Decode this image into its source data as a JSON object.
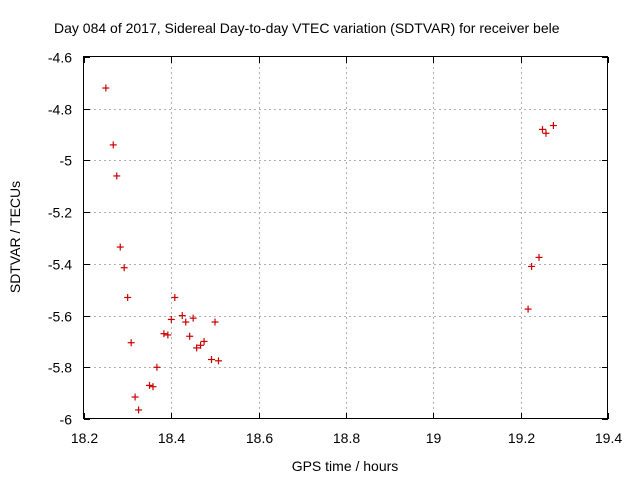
{
  "chart_data": {
    "type": "scatter",
    "title": "Day 084 of 2017, Sidereal Day-to-day VTEC variation (SDTVAR) for receiver bele",
    "xlabel": "GPS time / hours",
    "ylabel": "SDTVAR / TECUs",
    "xlim": [
      18.2,
      19.4
    ],
    "ylim": [
      -6.0,
      -4.6
    ],
    "grid": true,
    "x_ticks": [
      "18.2",
      "18.4",
      "18.6",
      "18.8",
      "19",
      "19.2",
      "19.4"
    ],
    "y_ticks": [
      "-6",
      "-5.8",
      "-5.6",
      "-5.4",
      "-5.2",
      "-5",
      "-4.8",
      "-4.6"
    ],
    "series": [
      {
        "name": "SDTVAR",
        "color": "#cc0000",
        "marker": "plus",
        "points": [
          [
            18.25,
            -4.72
          ],
          [
            18.267,
            -4.94
          ],
          [
            18.275,
            -5.06
          ],
          [
            18.283,
            -5.335
          ],
          [
            18.292,
            -5.415
          ],
          [
            18.3,
            -5.53
          ],
          [
            18.308,
            -5.705
          ],
          [
            18.317,
            -5.915
          ],
          [
            18.325,
            -5.965
          ],
          [
            18.35,
            -5.87
          ],
          [
            18.358,
            -5.875
          ],
          [
            18.367,
            -5.8
          ],
          [
            18.383,
            -5.67
          ],
          [
            18.392,
            -5.675
          ],
          [
            18.4,
            -5.615
          ],
          [
            18.408,
            -5.53
          ],
          [
            18.425,
            -5.6
          ],
          [
            18.433,
            -5.625
          ],
          [
            18.442,
            -5.68
          ],
          [
            18.45,
            -5.61
          ],
          [
            18.458,
            -5.725
          ],
          [
            18.467,
            -5.715
          ],
          [
            18.475,
            -5.7
          ],
          [
            18.492,
            -5.77
          ],
          [
            18.5,
            -5.625
          ],
          [
            18.508,
            -5.775
          ],
          [
            19.217,
            -5.575
          ],
          [
            19.225,
            -5.41
          ],
          [
            19.242,
            -5.375
          ],
          [
            19.25,
            -4.88
          ],
          [
            19.258,
            -4.895
          ],
          [
            19.275,
            -4.865
          ]
        ]
      }
    ]
  }
}
